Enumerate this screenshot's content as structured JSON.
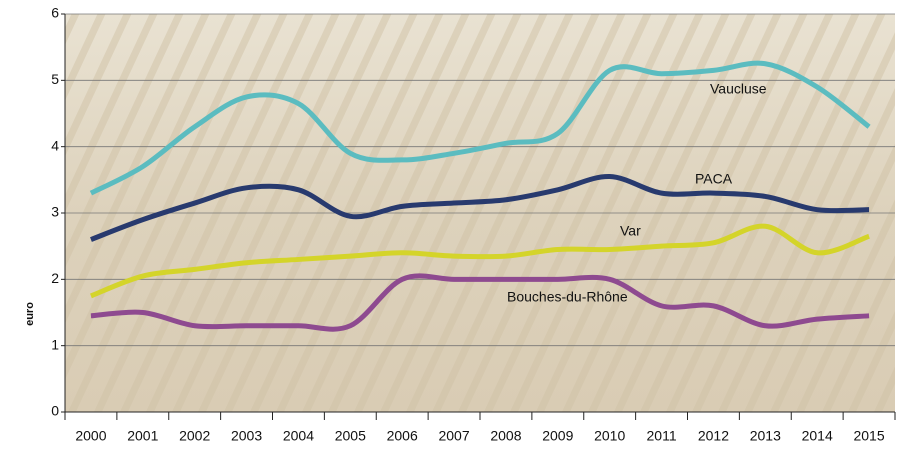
{
  "chart_data": {
    "type": "line",
    "y_label": "euro",
    "categories": [
      "2000",
      "2001",
      "2002",
      "2003",
      "2004",
      "2005",
      "2006",
      "2007",
      "2008",
      "2009",
      "2010",
      "2011",
      "2012",
      "2013",
      "2014",
      "2015"
    ],
    "series": [
      {
        "name": "Vaucluse",
        "color": "#5bbcc0",
        "values": [
          3.3,
          3.7,
          4.3,
          4.75,
          4.65,
          3.9,
          3.8,
          3.9,
          4.05,
          4.2,
          5.15,
          5.1,
          5.15,
          5.25,
          4.9,
          4.3
        ]
      },
      {
        "name": "PACA",
        "color": "#283a6e",
        "values": [
          2.6,
          2.9,
          3.15,
          3.38,
          3.35,
          2.95,
          3.1,
          3.15,
          3.2,
          3.35,
          3.55,
          3.3,
          3.3,
          3.25,
          3.05,
          3.05
        ]
      },
      {
        "name": "Var",
        "color": "#d4d42a",
        "values": [
          1.75,
          2.05,
          2.15,
          2.25,
          2.3,
          2.35,
          2.4,
          2.35,
          2.35,
          2.45,
          2.45,
          2.5,
          2.55,
          2.8,
          2.4,
          2.65
        ]
      },
      {
        "name": "Bouches-du-Rhône",
        "color": "#8e4a90",
        "values": [
          1.45,
          1.5,
          1.3,
          1.3,
          1.3,
          1.3,
          2.0,
          2.0,
          2.0,
          2.0,
          2.0,
          1.6,
          1.6,
          1.3,
          1.4,
          1.45
        ]
      }
    ],
    "ylim": [
      0,
      6
    ],
    "yticks": [
      0,
      1,
      2,
      3,
      4,
      5,
      6
    ],
    "grid": true
  }
}
